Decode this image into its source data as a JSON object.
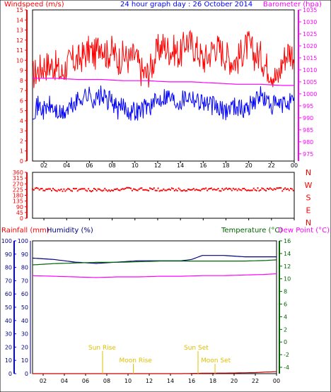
{
  "chart_data": [
    {
      "type": "line",
      "title": "24 hour graph day : 26 October 2014",
      "left_axis_label": "Windspeed (m/s)",
      "right_axis_label": "Barometer (hpa)",
      "left_ticks": [
        "15",
        "14",
        "13",
        "12",
        "11",
        "10",
        "9",
        "8",
        "7",
        "6",
        "5",
        "4",
        "3",
        "2",
        "1",
        "0"
      ],
      "right_ticks": [
        "1035",
        "1030",
        "1025",
        "1020",
        "1015",
        "1010",
        "1005",
        "1000",
        "995",
        "990",
        "985",
        "980",
        "975"
      ],
      "ylim_left": [
        0,
        15
      ],
      "ylim_right": [
        972,
        1035
      ],
      "x_ticks": [
        "02",
        "04",
        "06",
        "08",
        "10",
        "12",
        "14",
        "16",
        "18",
        "20",
        "22",
        "00"
      ],
      "xlim": [
        1,
        24
      ],
      "series": [
        {
          "name": "Windspeed (m/s)",
          "color": "#ff0000",
          "x": [
            1,
            1.5,
            2,
            2.5,
            3,
            3.5,
            4,
            4.5,
            5,
            5.5,
            6,
            6.5,
            7,
            7.5,
            8,
            8.5,
            9,
            9.5,
            10,
            10.5,
            11,
            11.5,
            12,
            12.5,
            13,
            13.5,
            14,
            14.5,
            15,
            15.5,
            16,
            16.5,
            17,
            17.5,
            18,
            18.5,
            19,
            19.5,
            20,
            20.5,
            21,
            21.5,
            22,
            22.5,
            23,
            23.5,
            24
          ],
          "values": [
            8.5,
            9,
            9.5,
            9.5,
            9.5,
            8.5,
            9.5,
            10,
            10,
            10.5,
            11,
            10.5,
            12,
            10.5,
            11,
            10,
            10.5,
            10,
            10.5,
            9,
            8.5,
            9.5,
            11,
            11.5,
            11,
            11,
            10.5,
            12,
            11.5,
            11,
            10,
            10.5,
            11.5,
            11,
            10.5,
            10,
            10,
            11,
            11.5,
            10.5,
            10.5,
            9.5,
            9,
            8,
            10,
            11,
            10.5
          ]
        },
        {
          "name": "Windspeed min",
          "color": "#0000ff",
          "x": [
            1,
            1.5,
            2,
            2.5,
            3,
            3.5,
            4,
            4.5,
            5,
            5.5,
            6,
            6.5,
            7,
            7.5,
            8,
            8.5,
            9,
            9.5,
            10,
            10.5,
            11,
            11.5,
            12,
            12.5,
            13,
            13.5,
            14,
            14.5,
            15,
            15.5,
            16,
            16.5,
            17,
            17.5,
            18,
            18.5,
            19,
            19.5,
            20,
            20.5,
            21,
            21.5,
            22,
            22.5,
            23,
            23.5,
            24
          ],
          "values": [
            5,
            5.5,
            5,
            5.5,
            5,
            4.5,
            5,
            5.5,
            6,
            6.5,
            6.5,
            6,
            6.5,
            6,
            6,
            5,
            5.5,
            5,
            5,
            5,
            5.5,
            5.5,
            6,
            6.5,
            6.5,
            6,
            6,
            6.5,
            6.5,
            6,
            6,
            5.5,
            5.5,
            5,
            5,
            5.5,
            5.5,
            5,
            5.5,
            6,
            6.5,
            6,
            5.5,
            5.5,
            5.5,
            6,
            5.5
          ]
        },
        {
          "name": "Barometer (hpa)",
          "axis": "right",
          "color": "#ff00ff",
          "x": [
            1,
            3,
            5,
            7,
            9,
            11,
            13,
            15,
            17,
            19,
            21,
            23,
            24
          ],
          "values": [
            1006.5,
            1006.5,
            1006,
            1006,
            1005.5,
            1005.5,
            1005,
            1005,
            1004.5,
            1004,
            1004,
            1003.5,
            1003.5
          ]
        }
      ]
    },
    {
      "type": "scatter",
      "left_ticks": [
        "360",
        "315",
        "270",
        "225",
        "180",
        "135",
        "90",
        "45",
        "0"
      ],
      "ylim": [
        0,
        360
      ],
      "right_labels": [
        "N",
        "W",
        "S",
        "E",
        "N"
      ],
      "x_ticks": [
        "02",
        "04",
        "06",
        "08",
        "10",
        "12",
        "14",
        "16",
        "18",
        "20",
        "22",
        "00"
      ],
      "series": [
        {
          "name": "Wind direction",
          "color": "#ff0000",
          "x": [
            1,
            2,
            3,
            4,
            5,
            6,
            7,
            8,
            9,
            10,
            11,
            12,
            13,
            14,
            15,
            16,
            17,
            18,
            19,
            20,
            21,
            22,
            23,
            24
          ],
          "values": [
            230,
            225,
            220,
            225,
            225,
            220,
            225,
            225,
            230,
            225,
            225,
            225,
            225,
            225,
            225,
            225,
            225,
            225,
            225,
            225,
            225,
            230,
            225,
            230
          ]
        }
      ]
    },
    {
      "type": "line",
      "rain_axis_label": "Rainfall (mm)",
      "humidity_axis_label": "Humidity (%)",
      "temp_axis_label": "Temperature (°C)",
      "dew_axis_label": "Dew Point (°C)",
      "rain_ticks": [
        "100",
        "90",
        "80",
        "70",
        "60",
        "50",
        "40",
        "30",
        "20",
        "10",
        "0"
      ],
      "humidity_ticks": [
        "100",
        "90",
        "80",
        "70",
        "60",
        "50",
        "40",
        "30",
        "20",
        "10",
        "0"
      ],
      "temp_ticks": [
        "16",
        "14",
        "12",
        "10",
        "8",
        "6",
        "4",
        "2",
        "0",
        "-2",
        "-4"
      ],
      "ylim_humidity": [
        0,
        100
      ],
      "ylim_temp": [
        -5,
        16
      ],
      "x_ticks": [
        "02",
        "04",
        "06",
        "08",
        "10",
        "12",
        "14",
        "16",
        "18",
        "20",
        "22",
        "00"
      ],
      "annotations": [
        {
          "label": "Sun Rise",
          "x": 7.6,
          "level": "upper"
        },
        {
          "label": "Moon Rise",
          "x": 10.5,
          "level": "lower"
        },
        {
          "label": "Sun Set",
          "x": 16.6,
          "level": "upper"
        },
        {
          "label": "Moon Set",
          "x": 18.2,
          "level": "lower"
        }
      ],
      "series": [
        {
          "name": "Humidity (%)",
          "color": "#000080",
          "x": [
            1,
            3,
            5,
            7,
            9,
            11,
            13,
            15,
            16,
            17,
            19,
            21,
            23,
            24
          ],
          "values": [
            87,
            86,
            84,
            83,
            84,
            85,
            85,
            85,
            86,
            89,
            89,
            88,
            88,
            88
          ]
        },
        {
          "name": "Temperature (°C)",
          "axis": "right",
          "color": "#006400",
          "x": [
            1,
            3,
            5,
            7,
            9,
            11,
            13,
            15,
            17,
            19,
            21,
            23,
            24
          ],
          "values": [
            12.2,
            12.4,
            12.5,
            12.6,
            12.6,
            12.7,
            12.8,
            12.8,
            12.8,
            12.8,
            12.8,
            12.9,
            13
          ]
        },
        {
          "name": "Dew Point (°C)",
          "axis": "right",
          "color": "#ff00ff",
          "x": [
            1,
            3,
            5,
            7,
            9,
            11,
            13,
            15,
            17,
            19,
            21,
            23,
            24
          ],
          "values": [
            10.5,
            10.4,
            10.3,
            10.2,
            10.3,
            10.3,
            10.4,
            10.4,
            10.5,
            10.5,
            10.6,
            10.7,
            10.8
          ]
        },
        {
          "name": "Rainfall (mm)",
          "color": "#cc0000",
          "x": [
            1,
            5,
            10,
            15,
            17,
            20,
            22,
            23,
            24
          ],
          "values": [
            0,
            0,
            0,
            0,
            0.3,
            0.5,
            0.8,
            1.2,
            1.5
          ]
        }
      ]
    }
  ]
}
